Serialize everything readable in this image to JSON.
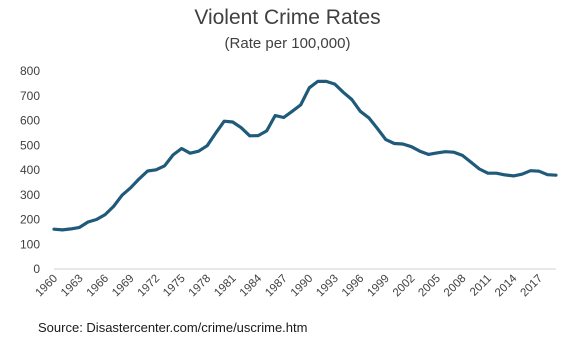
{
  "chart_data": {
    "type": "line",
    "title": "Violent Crime Rates",
    "subtitle": "(Rate per 100,000)",
    "xlabel": "",
    "ylabel": "",
    "source": "Source: Disastercenter.com/crime/uscrime.htm",
    "ylim": [
      0,
      800
    ],
    "yticks": [
      "0",
      "100",
      "200",
      "300",
      "400",
      "500",
      "600",
      "700",
      "800"
    ],
    "xlim": [
      1960,
      2019
    ],
    "xticks": [
      "1960",
      "1963",
      "1966",
      "1969",
      "1972",
      "1975",
      "1978",
      "1981",
      "1984",
      "1987",
      "1990",
      "1993",
      "1996",
      "1999",
      "2002",
      "2005",
      "2008",
      "2011",
      "2014",
      "2017"
    ],
    "grid": false,
    "legend": "none",
    "line_color": "#1f5a7a",
    "series": [
      {
        "x": [
          1960,
          1961,
          1962,
          1963,
          1964,
          1965,
          1966,
          1967,
          1968,
          1969,
          1970,
          1971,
          1972,
          1973,
          1974,
          1975,
          1976,
          1977,
          1978,
          1979,
          1980,
          1981,
          1982,
          1983,
          1984,
          1985,
          1986,
          1987,
          1988,
          1989,
          1990,
          1991,
          1992,
          1993,
          1994,
          1995,
          1996,
          1997,
          1998,
          1999,
          2000,
          2001,
          2002,
          2003,
          2004,
          2005,
          2006,
          2007,
          2008,
          2009,
          2010,
          2011,
          2012,
          2013,
          2014,
          2015,
          2016,
          2017,
          2018,
          2019
        ],
        "values": [
          161,
          158,
          162,
          168,
          190,
          200,
          220,
          253,
          298,
          328,
          364,
          396,
          401,
          417,
          461,
          487,
          468,
          476,
          498,
          549,
          597,
          594,
          571,
          538,
          539,
          558,
          620,
          612,
          637,
          663,
          732,
          758,
          758,
          747,
          714,
          685,
          637,
          611,
          568,
          523,
          507,
          505,
          494,
          476,
          463,
          469,
          474,
          472,
          459,
          432,
          404,
          387,
          387,
          380,
          376,
          383,
          397,
          395,
          381,
          379
        ]
      }
    ]
  }
}
